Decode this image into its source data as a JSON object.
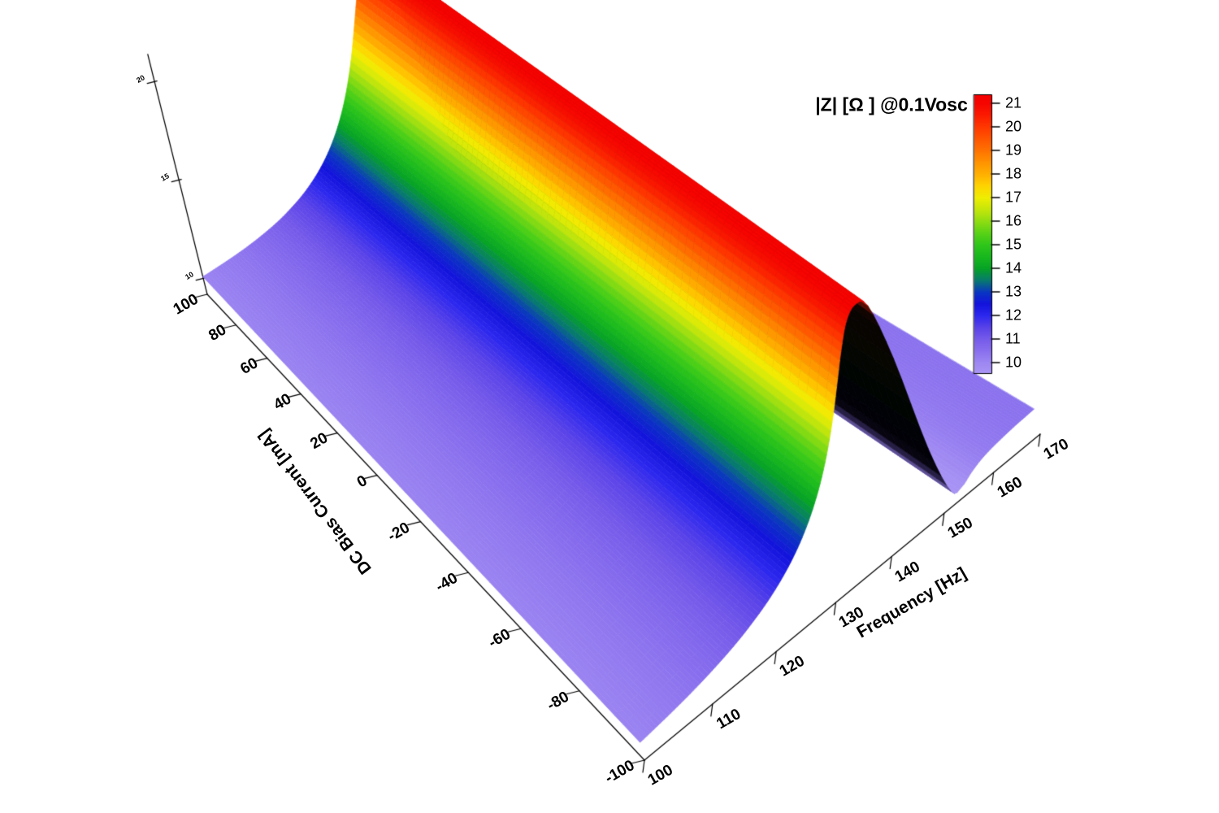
{
  "title": {
    "text": "|Z| [Ω ] @0.1Vosc"
  },
  "axes": {
    "x": {
      "label": "Frequency [Hz]",
      "tick_labels": [
        "100",
        "110",
        "120",
        "130",
        "140",
        "150",
        "160",
        "170"
      ],
      "range": [
        100,
        170
      ]
    },
    "y": {
      "label": "DC Bias Current [mA]",
      "tick_labels": [
        "100",
        "80",
        "60",
        "40",
        "20",
        "0",
        "-20",
        "-40",
        "-60",
        "-80",
        "-100"
      ],
      "range": [
        -100,
        100
      ]
    },
    "z": {
      "tick_labels": [
        "20",
        "15",
        "10"
      ],
      "range": [
        9.2,
        21.4
      ]
    }
  },
  "colorbar": {
    "tick_labels": [
      "21",
      "20",
      "19",
      "18",
      "17",
      "16",
      "15",
      "14",
      "13",
      "12",
      "11",
      "10"
    ],
    "top_value": 21.35,
    "bottom_value": 9.55
  },
  "chart_data": {
    "type": "surface",
    "title": "|Z| [Ω ] @0.1Vosc",
    "xlabel": "Frequency [Hz]",
    "ylabel": "DC Bias Current [mA]",
    "zlabel": "|Z| [Ω] @0.1Vosc",
    "x_range": [
      100,
      170
    ],
    "y_range": [
      -100,
      100
    ],
    "z_range": [
      9.5,
      21.4
    ],
    "resonance_peak_hz": 144.5,
    "resonance_peak_z_ohm": 21.1,
    "antiresonance_dip_hz": 153,
    "antiresonance_dip_z_ohm": 9.7,
    "bias_dependence": "negligible - |Z|(f) profile essentially constant across DC bias -100..100 mA",
    "profile_f_hz": [
      100,
      102,
      104,
      106,
      108,
      110,
      112,
      114,
      116,
      118,
      120,
      122,
      124,
      126,
      128,
      130,
      132,
      134,
      136,
      138,
      140,
      142,
      144,
      146,
      148,
      150,
      152,
      154,
      156,
      158,
      160,
      162,
      164,
      166,
      168,
      170
    ],
    "profile_z_ohm": [
      10.1,
      10.17,
      10.25,
      10.34,
      10.44,
      10.56,
      10.7,
      10.86,
      11.05,
      11.28,
      11.54,
      11.86,
      12.24,
      12.7,
      13.26,
      13.94,
      14.76,
      15.75,
      16.92,
      18.25,
      19.6,
      20.7,
      21.1,
      20.6,
      17.5,
      12.5,
      9.9,
      9.7,
      9.95,
      10.15,
      10.27,
      10.34,
      10.39,
      10.43,
      10.45,
      10.47
    ],
    "colormap": [
      {
        "v": 9.5,
        "c": "#ab97f5"
      },
      {
        "v": 10.0,
        "c": "#9e88f2"
      },
      {
        "v": 10.5,
        "c": "#8a70ee"
      },
      {
        "v": 11.0,
        "c": "#765bea"
      },
      {
        "v": 11.5,
        "c": "#5a43e8"
      },
      {
        "v": 12.0,
        "c": "#2d28ee"
      },
      {
        "v": 12.5,
        "c": "#1313dc"
      },
      {
        "v": 13.0,
        "c": "#0a35c2"
      },
      {
        "v": 13.5,
        "c": "#077a6e"
      },
      {
        "v": 14.0,
        "c": "#06a226"
      },
      {
        "v": 14.5,
        "c": "#18b81e"
      },
      {
        "v": 15.0,
        "c": "#2fc61a"
      },
      {
        "v": 15.5,
        "c": "#58d216"
      },
      {
        "v": 16.0,
        "c": "#8edc12"
      },
      {
        "v": 16.5,
        "c": "#c4e60b"
      },
      {
        "v": 17.0,
        "c": "#efee02"
      },
      {
        "v": 17.5,
        "c": "#ffd400"
      },
      {
        "v": 18.0,
        "c": "#ffb000"
      },
      {
        "v": 18.5,
        "c": "#ff9300"
      },
      {
        "v": 19.0,
        "c": "#ff7300"
      },
      {
        "v": 19.5,
        "c": "#ff5500"
      },
      {
        "v": 20.0,
        "c": "#ff3900"
      },
      {
        "v": 20.5,
        "c": "#fb1b00"
      },
      {
        "v": 21.0,
        "c": "#f60500"
      },
      {
        "v": 21.4,
        "c": "#f30000"
      }
    ],
    "steep_face_color": "#000000",
    "axis_color": "#000000",
    "background_color": "#ffffff"
  }
}
